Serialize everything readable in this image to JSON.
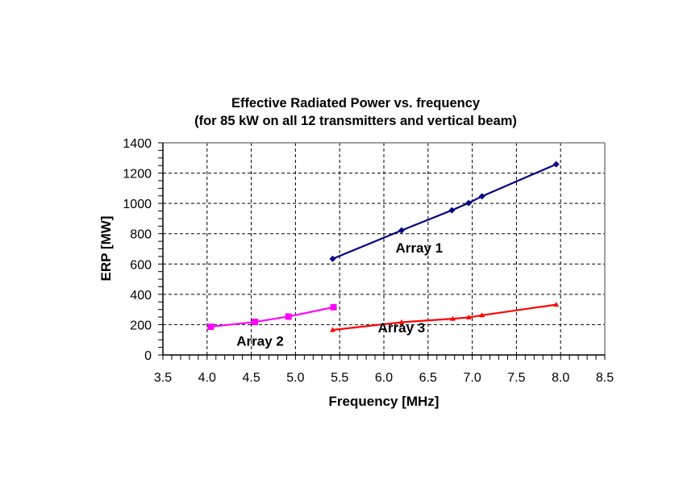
{
  "chart_data": {
    "type": "line",
    "title": "Effective Radiated Power vs. frequency",
    "subtitle": "(for 85 kW on all 12 transmitters and vertical beam)",
    "xlabel": "Frequency [MHz]",
    "ylabel": "ERP [MW]",
    "xlim": [
      3.5,
      8.5
    ],
    "ylim": [
      0,
      1400
    ],
    "x_ticks": [
      "3.5",
      "4.0",
      "4.5",
      "5.0",
      "5.5",
      "6.0",
      "6.5",
      "7.0",
      "7.5",
      "8.0",
      "8.5"
    ],
    "y_ticks": [
      "0",
      "200",
      "400",
      "600",
      "800",
      "1000",
      "1200",
      "1400"
    ],
    "x_major_step": 0.5,
    "x_minor_step": 0.1,
    "y_major_step": 200,
    "y_minor_step": 50,
    "grid": true,
    "legend": "none",
    "series": [
      {
        "name": "Array 1",
        "color": "#000080",
        "marker": "diamond",
        "x": [
          5.42,
          6.2,
          6.77,
          6.96,
          7.11,
          7.95
        ],
        "y": [
          634,
          822,
          955,
          1003,
          1047,
          1258
        ]
      },
      {
        "name": "Array 2",
        "color": "#ff00ff",
        "marker": "square",
        "x": [
          4.04,
          4.54,
          4.92,
          5.43
        ],
        "y": [
          186,
          218,
          253,
          315
        ]
      },
      {
        "name": "Array 3",
        "color": "#ff0000",
        "marker": "triangle",
        "x": [
          5.42,
          6.2,
          6.78,
          6.96,
          7.11,
          7.95
        ],
        "y": [
          165,
          216,
          239,
          248,
          262,
          332
        ]
      }
    ],
    "annotations": [
      {
        "text": "Array 1",
        "series": "Array 1",
        "x": 6.4,
        "y": 675
      },
      {
        "text": "Array 2",
        "series": "Array 2",
        "x": 4.6,
        "y": 60
      },
      {
        "text": "Array 3",
        "series": "Array 3",
        "x": 6.2,
        "y": 150
      }
    ]
  }
}
